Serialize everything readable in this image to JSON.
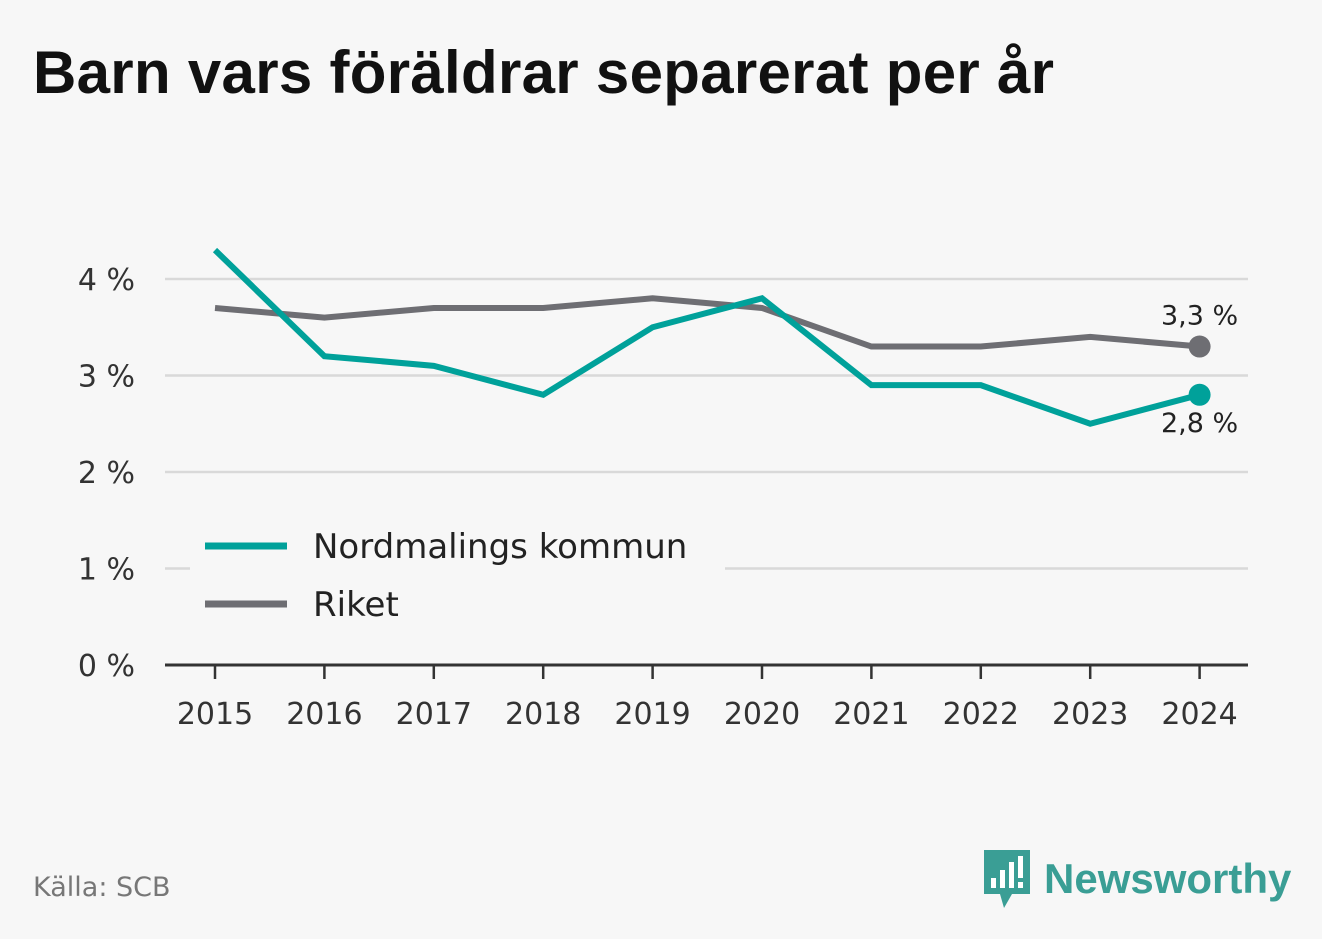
{
  "title": "Barn vars föräldrar separerat per år",
  "source": "Källa: SCB",
  "brand": "Newsworthy",
  "colors": {
    "nordmaling": "#00a19a",
    "riket": "#6e6e73",
    "grid": "#d9d9d9",
    "axis": "#333333",
    "brand": "#3a9e95"
  },
  "chart_data": {
    "type": "line",
    "title": "Barn vars föräldrar separerat per år",
    "x": [
      "2015",
      "2016",
      "2017",
      "2018",
      "2019",
      "2020",
      "2021",
      "2022",
      "2023",
      "2024"
    ],
    "ylim": [
      0,
      4
    ],
    "yticks": [
      "0 %",
      "1 %",
      "2 %",
      "3 %",
      "4 %"
    ],
    "grid": true,
    "legend_position": "bottom-left",
    "series": [
      {
        "name": "Nordmalings kommun",
        "color": "#00a19a",
        "values": [
          4.3,
          3.2,
          3.1,
          2.8,
          3.5,
          3.8,
          2.9,
          2.9,
          2.5,
          2.8
        ],
        "end_label": "2,8 %"
      },
      {
        "name": "Riket",
        "color": "#6e6e73",
        "values": [
          3.7,
          3.6,
          3.7,
          3.7,
          3.8,
          3.7,
          3.3,
          3.3,
          3.4,
          3.3
        ],
        "end_label": "3,3 %"
      }
    ]
  }
}
